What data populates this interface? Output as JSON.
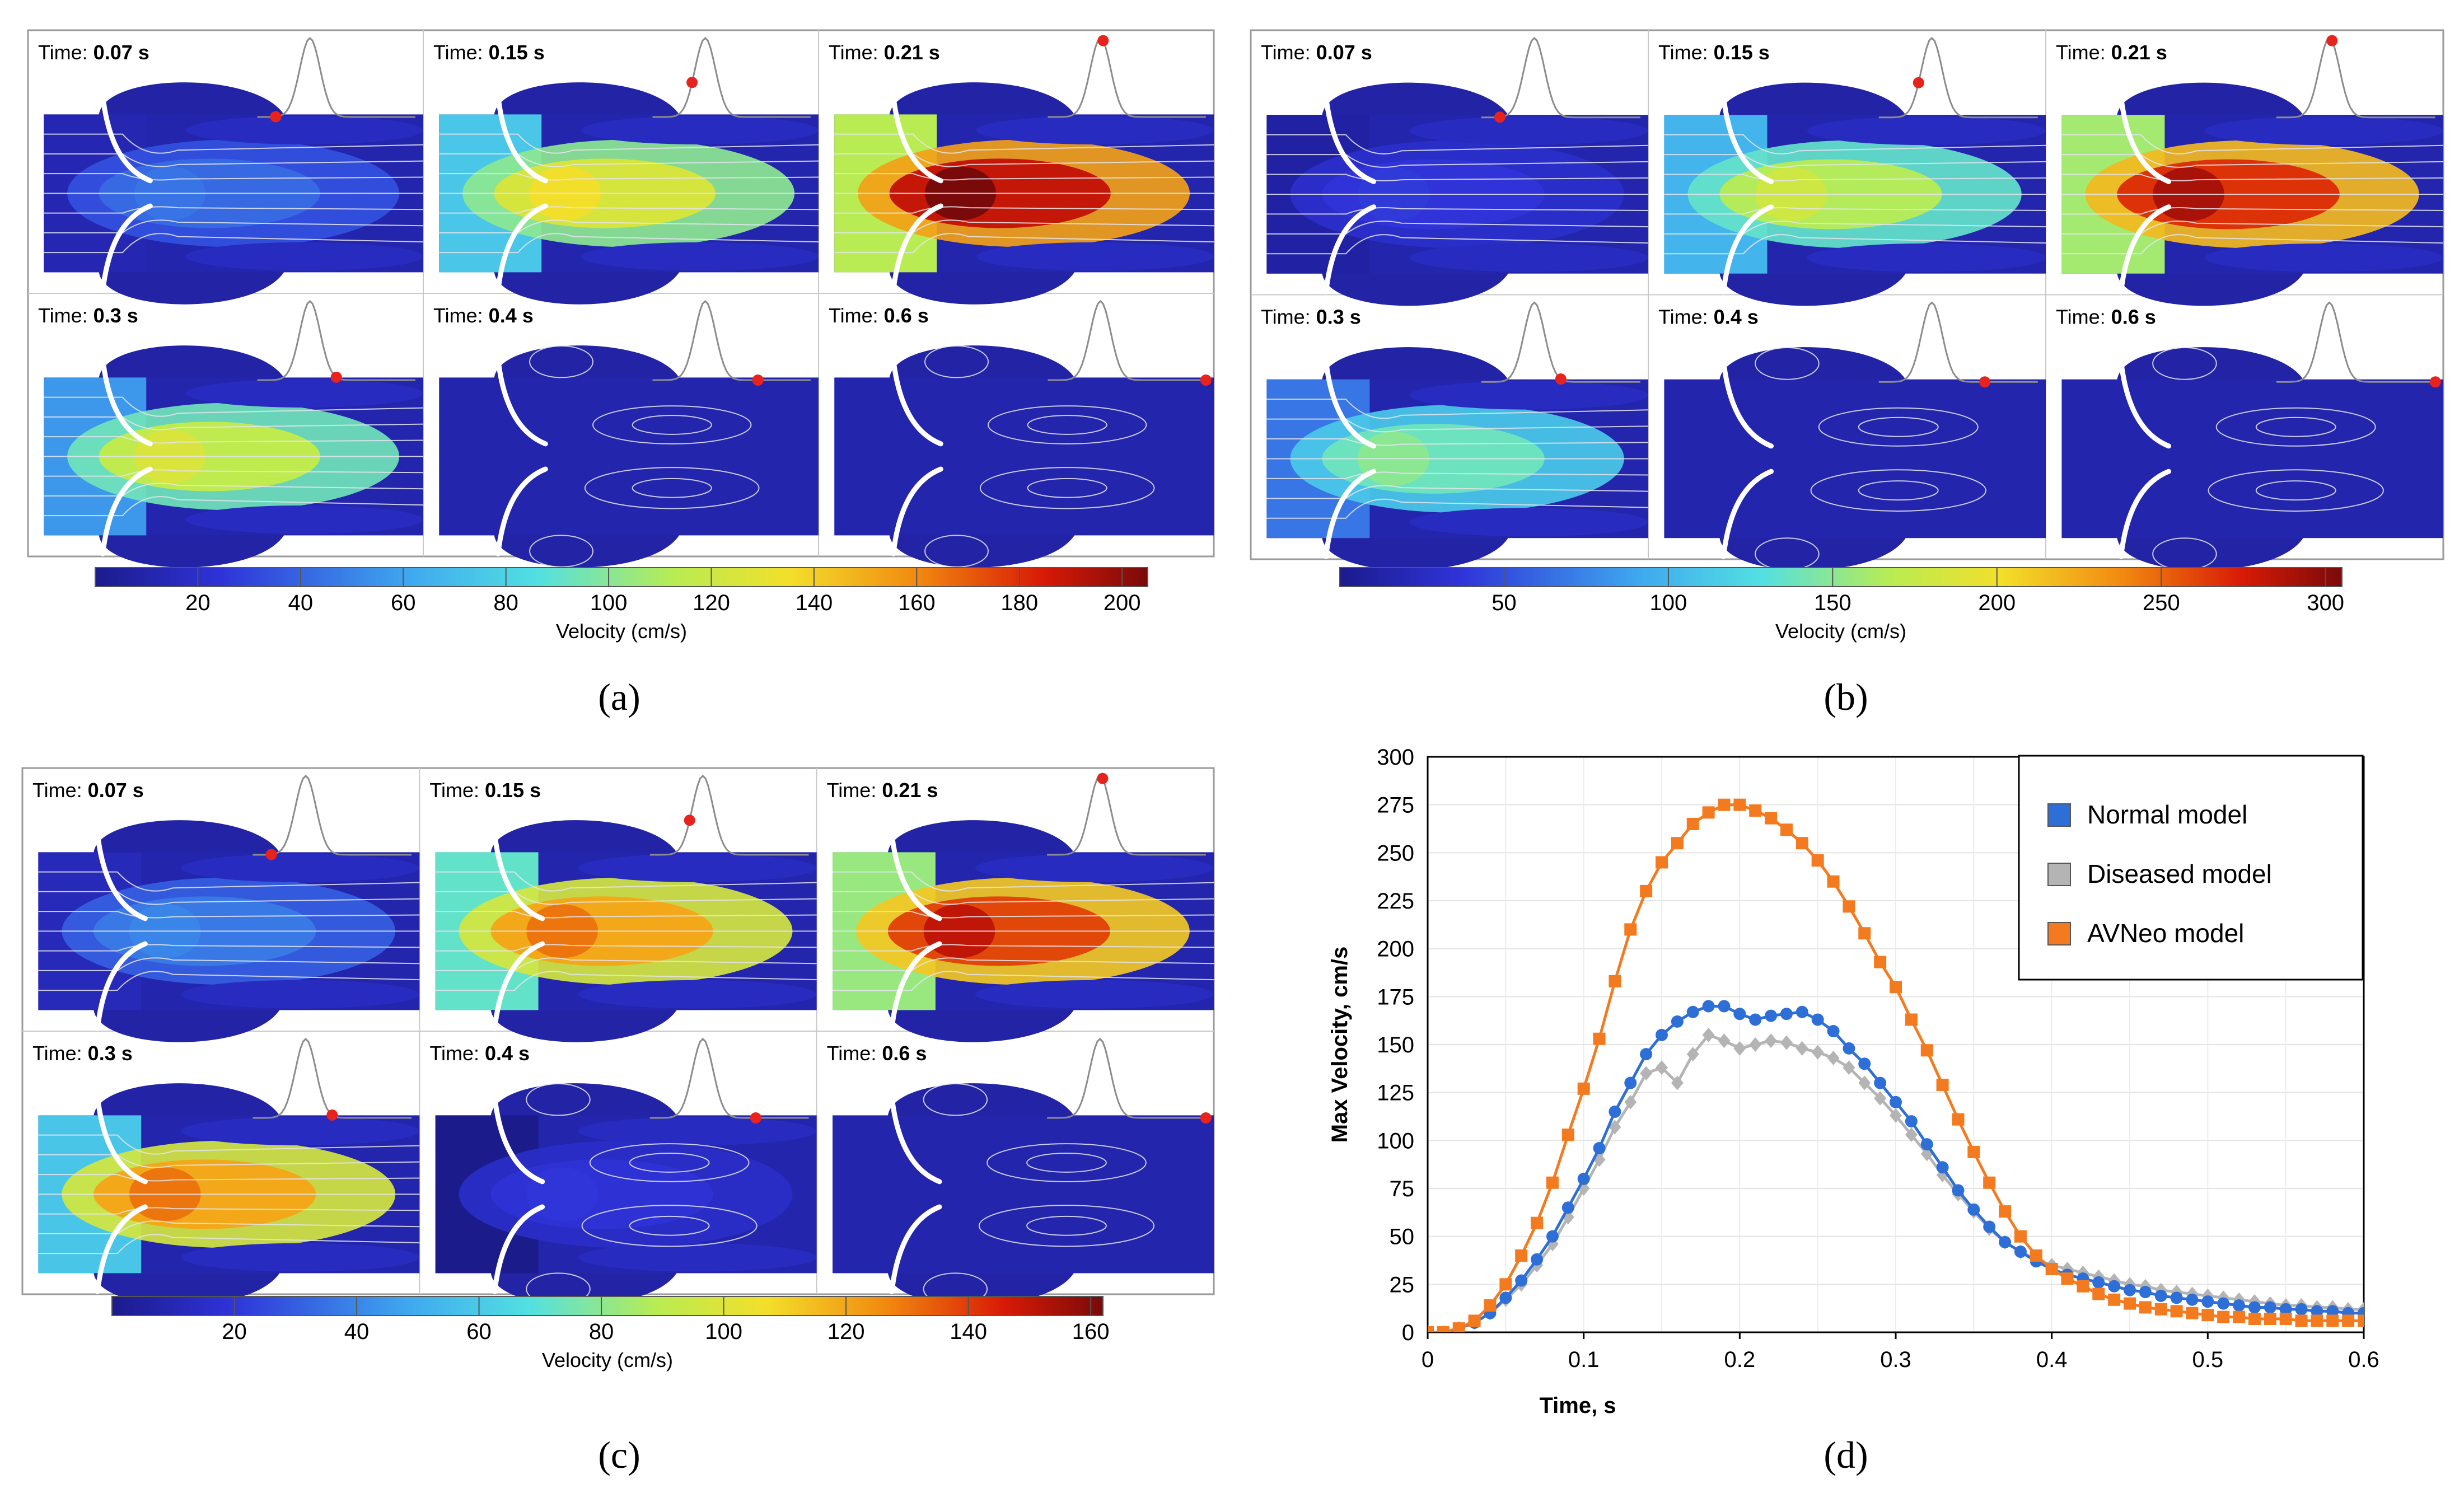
{
  "figure": {
    "panel_labels": [
      "(a)",
      "(b)",
      "(c)",
      "(d)"
    ],
    "time_label_prefix": "Time:",
    "time_values": [
      "0.07 s",
      "0.15 s",
      "0.21 s",
      "0.3 s",
      "0.4 s",
      "0.6 s"
    ],
    "panels": [
      {
        "id": "a",
        "colorbar": {
          "title": "Velocity (cm/s)",
          "ticks": [
            "20",
            "40",
            "60",
            "80",
            "100",
            "120",
            "140",
            "160",
            "180",
            "200"
          ],
          "max": 205
        },
        "peak_velocity_by_frame": [
          45,
          135,
          205,
          125,
          22,
          10
        ]
      },
      {
        "id": "b",
        "colorbar": {
          "title": "Velocity (cm/s)",
          "ticks": [
            "50",
            "100",
            "150",
            "200",
            "250",
            "300"
          ],
          "max": 305
        },
        "peak_velocity_by_frame": [
          40,
          180,
          290,
          150,
          25,
          12
        ]
      },
      {
        "id": "c",
        "colorbar": {
          "title": "Velocity (cm/s)",
          "ticks": [
            "20",
            "40",
            "60",
            "80",
            "100",
            "120",
            "140",
            "160"
          ],
          "max": 162
        },
        "peak_velocity_by_frame": [
          40,
          130,
          150,
          130,
          20,
          10
        ]
      }
    ],
    "waveform_marker_times": [
      0.07,
      0.15,
      0.21,
      0.3,
      0.4,
      0.6
    ],
    "colors": {
      "marker": "#e8231e",
      "frame_border": "#9a9a9a",
      "streamline": "#e6e6ee",
      "leaflet": "#ffffff"
    }
  },
  "chart_data": {
    "type": "line",
    "title": "",
    "xlabel": "Time, s",
    "ylabel": "Max Velocity, cm/s",
    "xlim": [
      0,
      0.6
    ],
    "ylim": [
      0,
      300
    ],
    "xticks": [
      "0",
      "0.1",
      "0.2",
      "0.3",
      "0.4",
      "0.5",
      "0.6"
    ],
    "yticks": [
      "0",
      "25",
      "50",
      "75",
      "100",
      "125",
      "150",
      "175",
      "200",
      "225",
      "250",
      "275",
      "300"
    ],
    "legend_position": "top-right",
    "series": [
      {
        "name": "Normal model",
        "color": "#2d6fd6",
        "marker": "circle",
        "x": [
          0,
          0.01,
          0.02,
          0.03,
          0.04,
          0.05,
          0.06,
          0.07,
          0.08,
          0.09,
          0.1,
          0.11,
          0.12,
          0.13,
          0.14,
          0.15,
          0.16,
          0.17,
          0.18,
          0.19,
          0.2,
          0.21,
          0.22,
          0.23,
          0.24,
          0.25,
          0.26,
          0.27,
          0.28,
          0.29,
          0.3,
          0.31,
          0.32,
          0.33,
          0.34,
          0.35,
          0.36,
          0.37,
          0.38,
          0.39,
          0.4,
          0.41,
          0.42,
          0.43,
          0.44,
          0.45,
          0.46,
          0.47,
          0.48,
          0.49,
          0.5,
          0.51,
          0.52,
          0.53,
          0.54,
          0.55,
          0.56,
          0.57,
          0.58,
          0.59,
          0.6
        ],
        "y": [
          0,
          0,
          2,
          5,
          10,
          18,
          27,
          38,
          50,
          65,
          80,
          96,
          115,
          130,
          145,
          155,
          162,
          167,
          170,
          170,
          166,
          163,
          165,
          166,
          167,
          163,
          157,
          148,
          140,
          130,
          120,
          110,
          98,
          86,
          74,
          64,
          55,
          47,
          42,
          37,
          33,
          30,
          28,
          26,
          24,
          22,
          21,
          19,
          18,
          17,
          16,
          15,
          14,
          13,
          13,
          12,
          12,
          11,
          11,
          10,
          10
        ]
      },
      {
        "name": "Diseased model",
        "color": "#b4b4b4",
        "marker": "diamond",
        "x": [
          0,
          0.01,
          0.02,
          0.03,
          0.04,
          0.05,
          0.06,
          0.07,
          0.08,
          0.09,
          0.1,
          0.11,
          0.12,
          0.13,
          0.14,
          0.15,
          0.16,
          0.17,
          0.18,
          0.19,
          0.2,
          0.21,
          0.22,
          0.23,
          0.24,
          0.25,
          0.26,
          0.27,
          0.28,
          0.29,
          0.3,
          0.31,
          0.32,
          0.33,
          0.34,
          0.35,
          0.36,
          0.37,
          0.38,
          0.39,
          0.4,
          0.41,
          0.42,
          0.43,
          0.44,
          0.45,
          0.46,
          0.47,
          0.48,
          0.49,
          0.5,
          0.51,
          0.52,
          0.53,
          0.54,
          0.55,
          0.56,
          0.57,
          0.58,
          0.59,
          0.6
        ],
        "y": [
          0,
          0,
          2,
          5,
          10,
          17,
          25,
          35,
          46,
          60,
          75,
          90,
          107,
          120,
          135,
          138,
          130,
          145,
          155,
          152,
          148,
          150,
          152,
          151,
          148,
          146,
          143,
          138,
          130,
          122,
          113,
          103,
          93,
          82,
          72,
          63,
          54,
          47,
          42,
          38,
          35,
          33,
          31,
          29,
          27,
          25,
          24,
          22,
          21,
          20,
          19,
          18,
          17,
          16,
          15,
          14,
          14,
          13,
          13,
          12,
          12
        ]
      },
      {
        "name": "AVNeo model",
        "color": "#f47a20",
        "marker": "square",
        "x": [
          0,
          0.01,
          0.02,
          0.03,
          0.04,
          0.05,
          0.06,
          0.07,
          0.08,
          0.09,
          0.1,
          0.11,
          0.12,
          0.13,
          0.14,
          0.15,
          0.16,
          0.17,
          0.18,
          0.19,
          0.2,
          0.21,
          0.22,
          0.23,
          0.24,
          0.25,
          0.26,
          0.27,
          0.28,
          0.29,
          0.3,
          0.31,
          0.32,
          0.33,
          0.34,
          0.35,
          0.36,
          0.37,
          0.38,
          0.39,
          0.4,
          0.41,
          0.42,
          0.43,
          0.44,
          0.45,
          0.46,
          0.47,
          0.48,
          0.49,
          0.5,
          0.51,
          0.52,
          0.53,
          0.54,
          0.55,
          0.56,
          0.57,
          0.58,
          0.59,
          0.6
        ],
        "y": [
          0,
          0,
          2,
          6,
          14,
          25,
          40,
          57,
          78,
          103,
          127,
          153,
          183,
          210,
          230,
          245,
          255,
          265,
          271,
          275,
          275,
          272,
          268,
          262,
          255,
          246,
          235,
          222,
          208,
          193,
          180,
          163,
          147,
          129,
          111,
          94,
          78,
          63,
          50,
          40,
          33,
          28,
          24,
          20,
          17,
          15,
          13,
          12,
          11,
          10,
          9,
          8,
          8,
          7,
          7,
          7,
          6,
          6,
          6,
          6,
          6
        ]
      }
    ]
  }
}
